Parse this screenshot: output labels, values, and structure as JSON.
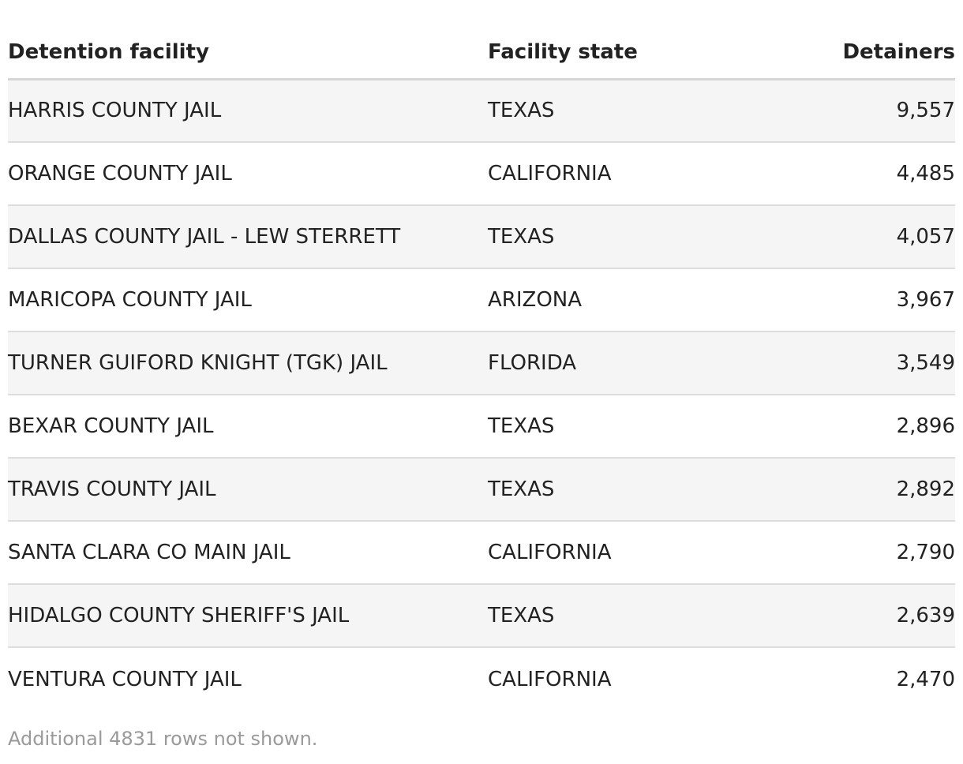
{
  "table": {
    "columns": [
      "Detention facility",
      "Facility state",
      "Detainers"
    ],
    "rows": [
      {
        "facility": "HARRIS COUNTY JAIL",
        "state": "TEXAS",
        "detainers": "9,557"
      },
      {
        "facility": "ORANGE COUNTY JAIL",
        "state": "CALIFORNIA",
        "detainers": "4,485"
      },
      {
        "facility": "DALLAS COUNTY JAIL - LEW STERRETT",
        "state": "TEXAS",
        "detainers": "4,057"
      },
      {
        "facility": "MARICOPA COUNTY JAIL",
        "state": "ARIZONA",
        "detainers": "3,967"
      },
      {
        "facility": "TURNER GUIFORD KNIGHT (TGK) JAIL",
        "state": "FLORIDA",
        "detainers": "3,549"
      },
      {
        "facility": "BEXAR COUNTY JAIL",
        "state": "TEXAS",
        "detainers": "2,896"
      },
      {
        "facility": "TRAVIS COUNTY JAIL",
        "state": "TEXAS",
        "detainers": "2,892"
      },
      {
        "facility": "SANTA CLARA CO MAIN JAIL",
        "state": "CALIFORNIA",
        "detainers": "2,790"
      },
      {
        "facility": "HIDALGO COUNTY SHERIFF'S JAIL",
        "state": "TEXAS",
        "detainers": "2,639"
      },
      {
        "facility": "VENTURA COUNTY JAIL",
        "state": "CALIFORNIA",
        "detainers": "2,470"
      }
    ]
  },
  "footnote": "Additional 4831 rows not shown.",
  "colors": {
    "text": "#222222",
    "stripe": "#f5f5f5",
    "header_rule": "#d6d6d6",
    "row_rule": "#dddddd",
    "footnote": "#9a9a9a"
  }
}
